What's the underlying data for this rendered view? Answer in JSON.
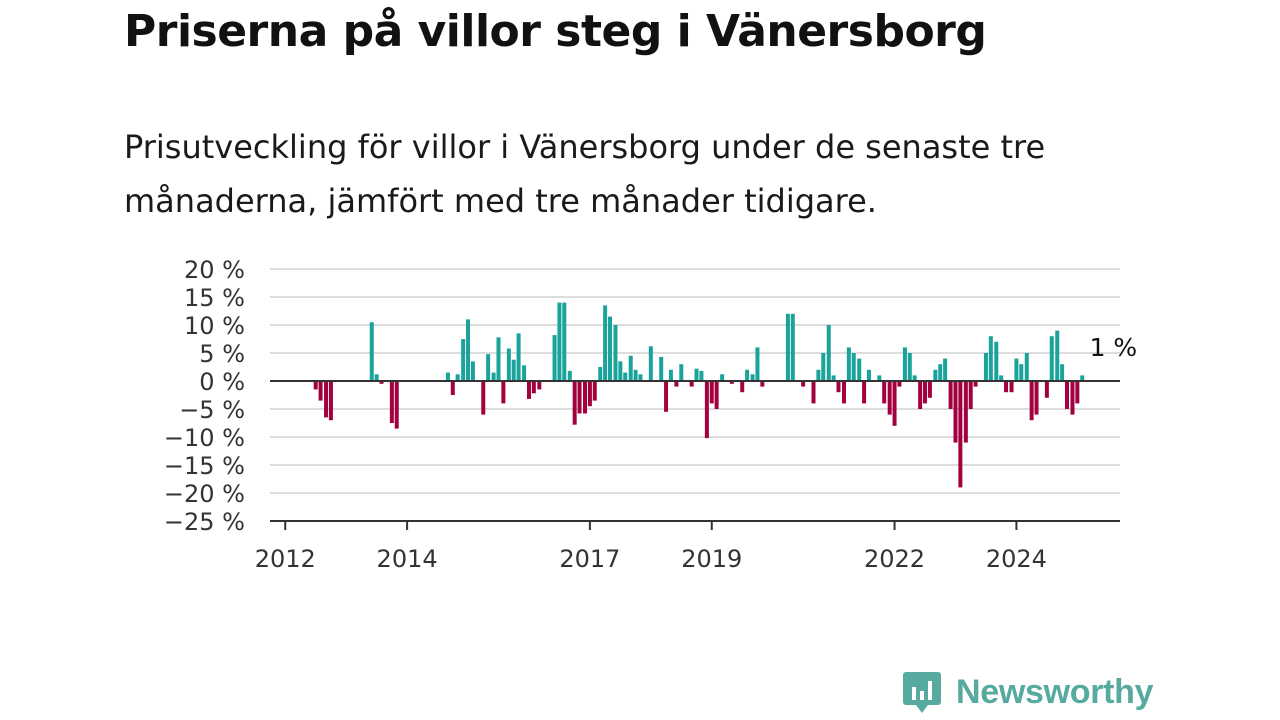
{
  "header": {
    "title": "Priserna på villor steg i Vänersborg",
    "subtitle": "Prisutveckling för villor i Vänersborg under de senaste tre månaderna, jämfört med tre månader tidigare."
  },
  "brand": {
    "name": "Newsworthy",
    "icon": "newsworthy-logo-icon",
    "color": "#56aaa0"
  },
  "colors": {
    "positive": "#1aa39a",
    "negative": "#a3003f",
    "grid": "#dddddd",
    "axis": "#333333"
  },
  "chart_data": {
    "type": "bar",
    "ylim": [
      -25,
      20
    ],
    "yticks": [
      20,
      15,
      10,
      5,
      0,
      -5,
      -10,
      -15,
      -20,
      -25
    ],
    "ytick_labels": [
      "20 %",
      "15 %",
      "10 %",
      "5 %",
      "0 %",
      "−5 %",
      "−10 %",
      "−15 %",
      "−20 %",
      "−25 %"
    ],
    "xlim": [
      2011.75,
      2025.7
    ],
    "xticks": [
      2012,
      2014,
      2017,
      2019,
      2022,
      2024
    ],
    "xtick_labels": [
      "2012",
      "2014",
      "2017",
      "2019",
      "2022",
      "2024"
    ],
    "grid": true,
    "annotation": {
      "text": "1 %",
      "x": 2025.25,
      "y": 1
    },
    "series": [
      {
        "values": [
          [
            2012.5,
            -1.5
          ],
          [
            2012.58,
            -3.5
          ],
          [
            2012.67,
            -6.5
          ],
          [
            2012.75,
            -7
          ],
          [
            2013.42,
            10.5
          ],
          [
            2013.5,
            1.2
          ],
          [
            2013.58,
            -0.5
          ],
          [
            2013.75,
            -7.5
          ],
          [
            2013.83,
            -8.5
          ],
          [
            2014.67,
            1.5
          ],
          [
            2014.75,
            -2.5
          ],
          [
            2014.83,
            1.2
          ],
          [
            2014.92,
            7.5
          ],
          [
            2015.0,
            11
          ],
          [
            2015.08,
            3.5
          ],
          [
            2015.25,
            -6
          ],
          [
            2015.33,
            4.8
          ],
          [
            2015.42,
            1.5
          ],
          [
            2015.5,
            7.8
          ],
          [
            2015.58,
            -4
          ],
          [
            2015.67,
            5.8
          ],
          [
            2015.75,
            3.8
          ],
          [
            2015.83,
            8.5
          ],
          [
            2015.92,
            2.8
          ],
          [
            2016.0,
            -3.2
          ],
          [
            2016.08,
            -2.2
          ],
          [
            2016.17,
            -1.5
          ],
          [
            2016.42,
            8.2
          ],
          [
            2016.5,
            14
          ],
          [
            2016.58,
            14
          ],
          [
            2016.67,
            1.8
          ],
          [
            2016.75,
            -7.8
          ],
          [
            2016.83,
            -5.8
          ],
          [
            2016.92,
            -5.8
          ],
          [
            2017.0,
            -4.5
          ],
          [
            2017.08,
            -3.5
          ],
          [
            2017.17,
            2.5
          ],
          [
            2017.25,
            13.5
          ],
          [
            2017.33,
            11.5
          ],
          [
            2017.42,
            10
          ],
          [
            2017.5,
            3.5
          ],
          [
            2017.58,
            1.5
          ],
          [
            2017.67,
            4.5
          ],
          [
            2017.75,
            2
          ],
          [
            2017.83,
            1.2
          ],
          [
            2018.0,
            6.2
          ],
          [
            2018.17,
            4.3
          ],
          [
            2018.25,
            -5.5
          ],
          [
            2018.33,
            2
          ],
          [
            2018.42,
            -1
          ],
          [
            2018.5,
            3
          ],
          [
            2018.67,
            -1
          ],
          [
            2018.75,
            2.2
          ],
          [
            2018.83,
            1.8
          ],
          [
            2018.92,
            -10.2
          ],
          [
            2019.0,
            -4
          ],
          [
            2019.08,
            -5
          ],
          [
            2019.17,
            1.2
          ],
          [
            2019.33,
            -0.5
          ],
          [
            2019.5,
            -2
          ],
          [
            2019.58,
            2
          ],
          [
            2019.67,
            1.2
          ],
          [
            2019.75,
            6
          ],
          [
            2019.83,
            -1
          ],
          [
            2020.25,
            12
          ],
          [
            2020.33,
            12
          ],
          [
            2020.5,
            -1
          ],
          [
            2020.67,
            -4
          ],
          [
            2020.75,
            2
          ],
          [
            2020.83,
            5
          ],
          [
            2020.92,
            10
          ],
          [
            2021.0,
            1
          ],
          [
            2021.08,
            -2
          ],
          [
            2021.17,
            -4
          ],
          [
            2021.25,
            6
          ],
          [
            2021.33,
            5
          ],
          [
            2021.42,
            4
          ],
          [
            2021.5,
            -4
          ],
          [
            2021.58,
            2
          ],
          [
            2021.75,
            1
          ],
          [
            2021.83,
            -4
          ],
          [
            2021.92,
            -6
          ],
          [
            2022.0,
            -8
          ],
          [
            2022.08,
            -1
          ],
          [
            2022.17,
            6
          ],
          [
            2022.25,
            5
          ],
          [
            2022.33,
            1
          ],
          [
            2022.42,
            -5
          ],
          [
            2022.5,
            -4
          ],
          [
            2022.58,
            -3
          ],
          [
            2022.67,
            2
          ],
          [
            2022.75,
            3
          ],
          [
            2022.83,
            4
          ],
          [
            2022.92,
            -5
          ],
          [
            2023.0,
            -11
          ],
          [
            2023.08,
            -19
          ],
          [
            2023.17,
            -11
          ],
          [
            2023.25,
            -5
          ],
          [
            2023.33,
            -1
          ],
          [
            2023.5,
            5
          ],
          [
            2023.58,
            8
          ],
          [
            2023.67,
            7
          ],
          [
            2023.75,
            1
          ],
          [
            2023.83,
            -2
          ],
          [
            2023.92,
            -2
          ],
          [
            2024.0,
            4
          ],
          [
            2024.08,
            3
          ],
          [
            2024.17,
            5
          ],
          [
            2024.25,
            -7
          ],
          [
            2024.33,
            -6
          ],
          [
            2024.5,
            -3
          ],
          [
            2024.58,
            8
          ],
          [
            2024.67,
            9
          ],
          [
            2024.75,
            3
          ],
          [
            2024.83,
            -5
          ],
          [
            2024.92,
            -6
          ],
          [
            2025.0,
            -4
          ],
          [
            2025.08,
            1
          ]
        ]
      }
    ]
  }
}
